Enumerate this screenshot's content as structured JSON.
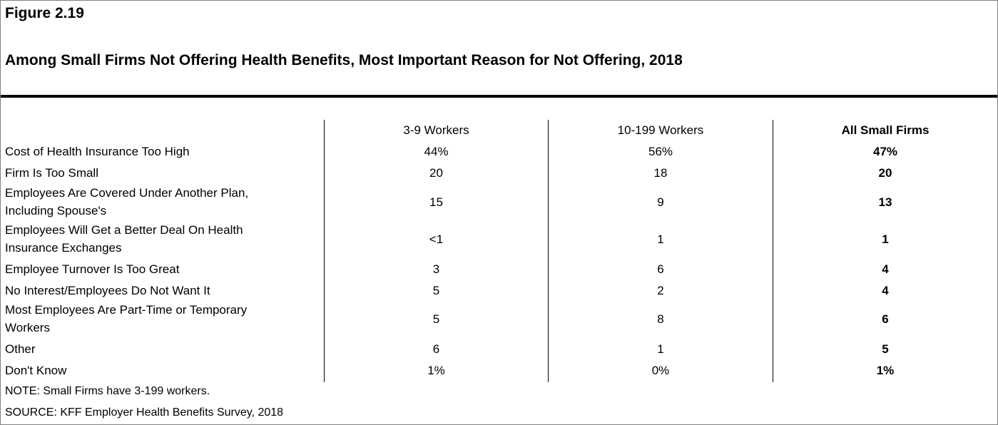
{
  "figure_label": "Figure 2.19",
  "chart_data": {
    "type": "table",
    "title": "Among Small Firms Not Offering Health Benefits, Most Important Reason for Not Offering, 2018",
    "columns": [
      "3-9 Workers",
      "10-199 Workers",
      "All Small Firms"
    ],
    "rows": [
      {
        "label": "Cost of Health Insurance Too High",
        "values": [
          "44%",
          "56%",
          "47%"
        ]
      },
      {
        "label": "Firm Is Too Small",
        "values": [
          "20",
          "18",
          "20"
        ]
      },
      {
        "label": "Employees Are Covered Under Another Plan,\nIncluding Spouse's",
        "values": [
          "15",
          "9",
          "13"
        ]
      },
      {
        "label": "Employees Will Get a Better Deal On Health\nInsurance Exchanges",
        "values": [
          "<1",
          "1",
          "1"
        ]
      },
      {
        "label": "Employee Turnover Is Too Great",
        "values": [
          "3",
          "6",
          "4"
        ]
      },
      {
        "label": "No Interest/Employees Do Not Want It",
        "values": [
          "5",
          "2",
          "4"
        ]
      },
      {
        "label": "Most Employees Are Part-Time or Temporary\nWorkers",
        "values": [
          "5",
          "8",
          "6"
        ]
      },
      {
        "label": "Other",
        "values": [
          "6",
          "1",
          "5"
        ]
      },
      {
        "label": "Don't Know",
        "values": [
          "1%",
          "0%",
          "1%"
        ]
      }
    ]
  },
  "notes": {
    "note": "NOTE: Small Firms have 3-199 workers.",
    "source": "SOURCE: KFF Employer Health Benefits Survey, 2018"
  }
}
